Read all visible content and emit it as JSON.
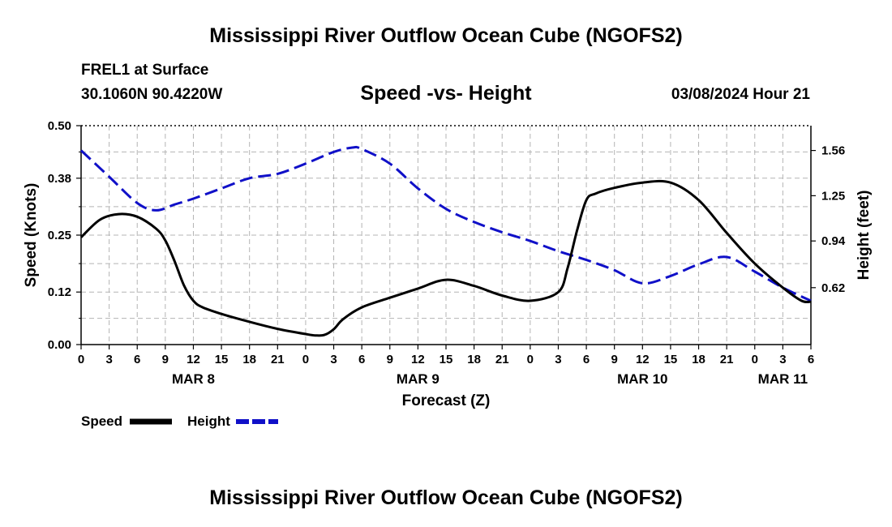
{
  "header": {
    "title": "Mississippi River Outflow Ocean Cube (NGOFS2)",
    "station": "FREL1 at Surface",
    "coordinates": "30.1060N  90.4220W",
    "subtitle": "Speed -vs- Height",
    "timestamp": "03/08/2024 Hour 21"
  },
  "footer": {
    "title": "Mississippi River Outflow Ocean Cube (NGOFS2)"
  },
  "legend": {
    "items": [
      {
        "label": "Speed",
        "color": "#000000",
        "style": "solid"
      },
      {
        "label": "Height",
        "color": "#1010c8",
        "style": "dashed"
      }
    ]
  },
  "chart_data": {
    "type": "line",
    "title": "Speed -vs- Height",
    "xlabel": "Forecast (Z)",
    "ylabel": "Speed (Knots)",
    "y2label": "Height (feet)",
    "xlim": [
      0,
      78
    ],
    "ylim": [
      0,
      0.5
    ],
    "y2lim": [
      0.23,
      1.73
    ],
    "x_tick_values": [
      0,
      3,
      6,
      9,
      12,
      15,
      18,
      21,
      24,
      27,
      30,
      33,
      36,
      39,
      42,
      45,
      48,
      51,
      54,
      57,
      60,
      63,
      66,
      69,
      72,
      75,
      78
    ],
    "x_tick_labels": [
      "0",
      "3",
      "6",
      "9",
      "12",
      "15",
      "18",
      "21",
      "0",
      "3",
      "6",
      "9",
      "12",
      "15",
      "18",
      "21",
      "0",
      "3",
      "6",
      "9",
      "12",
      "15",
      "18",
      "21",
      "0",
      "3",
      "6"
    ],
    "date_labels": [
      {
        "x": 12,
        "label": "MAR 8"
      },
      {
        "x": 36,
        "label": "MAR 9"
      },
      {
        "x": 60,
        "label": "MAR 10"
      },
      {
        "x": 75,
        "label": "MAR 11"
      }
    ],
    "y_ticks": [
      0.0,
      0.12,
      0.25,
      0.38,
      0.5
    ],
    "y_tick_labels": [
      "0.00",
      "0.12",
      "0.25",
      "0.38",
      "0.50"
    ],
    "y2_ticks": [
      0.62,
      0.94,
      1.25,
      1.56
    ],
    "y2_tick_labels": [
      "0.62",
      "0.94",
      "1.25",
      "1.56"
    ],
    "grid": true,
    "series": [
      {
        "name": "Speed",
        "axis": "left",
        "color": "#000000",
        "dash": false,
        "x": [
          0,
          2,
          4,
          6,
          8,
          9,
          10,
          11,
          12,
          13,
          15,
          18,
          21,
          24,
          25,
          26,
          27,
          28,
          30,
          33,
          36,
          39,
          42,
          45,
          48,
          51,
          52,
          53,
          54,
          55,
          57,
          60,
          63,
          66,
          69,
          72,
          75,
          77,
          78
        ],
        "y": [
          0.245,
          0.285,
          0.298,
          0.292,
          0.265,
          0.238,
          0.19,
          0.135,
          0.1,
          0.085,
          0.07,
          0.052,
          0.036,
          0.024,
          0.021,
          0.022,
          0.035,
          0.058,
          0.085,
          0.107,
          0.128,
          0.148,
          0.134,
          0.112,
          0.1,
          0.12,
          0.175,
          0.26,
          0.33,
          0.345,
          0.358,
          0.37,
          0.37,
          0.33,
          0.255,
          0.185,
          0.13,
          0.1,
          0.098
        ]
      },
      {
        "name": "Height",
        "axis": "right",
        "color": "#1010c8",
        "dash": true,
        "x": [
          0,
          3,
          6,
          8,
          10,
          12,
          15,
          18,
          21,
          24,
          27,
          29,
          30,
          33,
          36,
          39,
          42,
          45,
          48,
          51,
          54,
          57,
          60,
          63,
          66,
          69,
          72,
          75,
          78
        ],
        "y": [
          1.56,
          1.38,
          1.2,
          1.15,
          1.19,
          1.23,
          1.3,
          1.37,
          1.4,
          1.47,
          1.55,
          1.58,
          1.57,
          1.47,
          1.3,
          1.16,
          1.07,
          1.0,
          0.94,
          0.87,
          0.81,
          0.74,
          0.65,
          0.7,
          0.78,
          0.83,
          0.73,
          0.62,
          0.53
        ]
      }
    ]
  }
}
